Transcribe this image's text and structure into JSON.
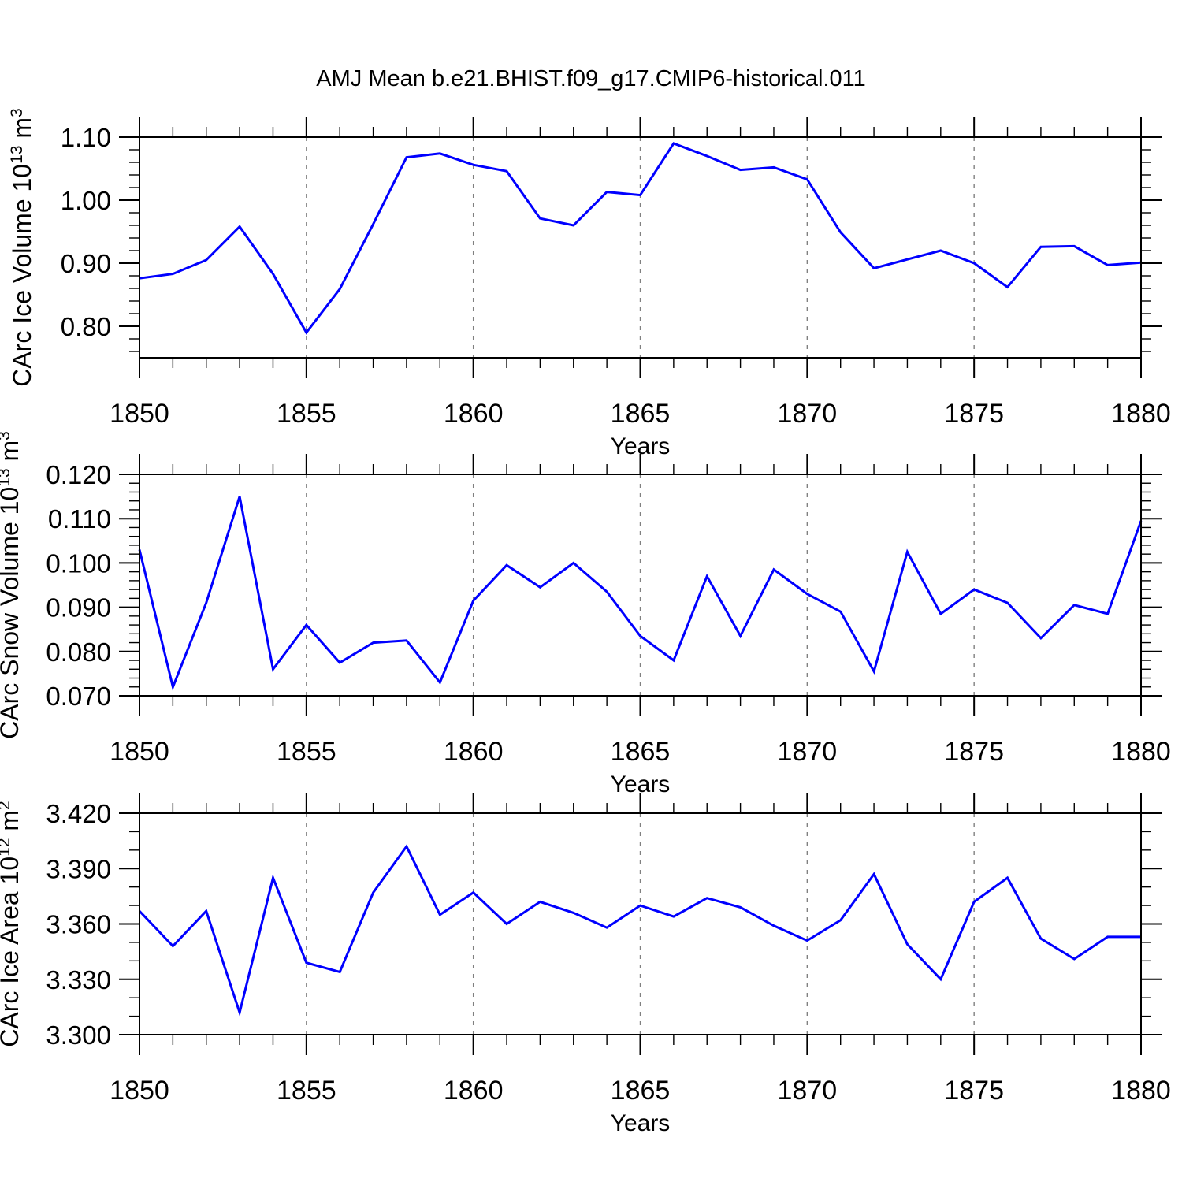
{
  "page": {
    "title": "AMJ Mean b.e21.BHIST.f09_g17.CMIP6-historical.011"
  },
  "colors": {
    "line": "#0000ff",
    "frame": "#000000",
    "grid": "#808080",
    "text": "#000000"
  },
  "chart_data": [
    {
      "id": "carc-ice-volume-chart",
      "type": "line",
      "title": "",
      "xlabel": "Years",
      "ylabel_plain": "CArc Ice Volume 10^13 m^3",
      "ylabel_parts": [
        {
          "text": "CArc Ice Volume 10",
          "sup": false
        },
        {
          "text": "13",
          "sup": true
        },
        {
          "text": " m",
          "sup": false
        },
        {
          "text": "3",
          "sup": true
        }
      ],
      "x": [
        1850,
        1851,
        1852,
        1853,
        1854,
        1855,
        1856,
        1857,
        1858,
        1859,
        1860,
        1861,
        1862,
        1863,
        1864,
        1865,
        1866,
        1867,
        1868,
        1869,
        1870,
        1871,
        1872,
        1873,
        1874,
        1875,
        1876,
        1877,
        1878,
        1879,
        1880
      ],
      "values": [
        0.876,
        0.883,
        0.905,
        0.958,
        0.883,
        0.79,
        0.859,
        0.962,
        1.068,
        1.074,
        1.056,
        1.046,
        0.971,
        0.96,
        1.013,
        1.008,
        1.09,
        1.07,
        1.048,
        1.052,
        1.033,
        0.949,
        0.892,
        0.906,
        0.92,
        0.9,
        0.862,
        0.926,
        0.927,
        0.897,
        0.901
      ],
      "xlim": [
        1850,
        1880
      ],
      "ylim": [
        0.75,
        1.1
      ],
      "xtick_values": [
        1850,
        1855,
        1860,
        1865,
        1870,
        1875,
        1880
      ],
      "xtick_labels": [
        "1850",
        "1855",
        "1860",
        "1865",
        "1870",
        "1875",
        "1880"
      ],
      "xtick_minor_step": 1,
      "ytick_values": [
        0.8,
        0.9,
        1.0,
        1.1
      ],
      "ytick_labels": [
        "0.80",
        "0.90",
        "1.00",
        "1.10"
      ],
      "ytick_minor_step": 0.02,
      "grid_x": [
        1855,
        1860,
        1865,
        1870,
        1875
      ],
      "grid_dashed": true
    },
    {
      "id": "carc-snow-volume-chart",
      "type": "line",
      "title": "",
      "xlabel": "Years",
      "ylabel_plain": "CArc Snow Volume 10^13 m^3",
      "ylabel_parts": [
        {
          "text": "CArc Snow Volume 10",
          "sup": false
        },
        {
          "text": "13",
          "sup": true
        },
        {
          "text": " m",
          "sup": false
        },
        {
          "text": "3",
          "sup": true
        }
      ],
      "x": [
        1850,
        1851,
        1852,
        1853,
        1854,
        1855,
        1856,
        1857,
        1858,
        1859,
        1860,
        1861,
        1862,
        1863,
        1864,
        1865,
        1866,
        1867,
        1868,
        1869,
        1870,
        1871,
        1872,
        1873,
        1874,
        1875,
        1876,
        1877,
        1878,
        1879,
        1880
      ],
      "values": [
        0.103,
        0.072,
        0.091,
        0.115,
        0.076,
        0.086,
        0.0775,
        0.082,
        0.0825,
        0.073,
        0.0915,
        0.0995,
        0.0945,
        0.1,
        0.0935,
        0.0835,
        0.078,
        0.097,
        0.0835,
        0.0985,
        0.093,
        0.089,
        0.0755,
        0.1025,
        0.0885,
        0.094,
        0.091,
        0.083,
        0.0905,
        0.0885,
        0.1095
      ],
      "xlim": [
        1850,
        1880
      ],
      "ylim": [
        0.07,
        0.12
      ],
      "xtick_values": [
        1850,
        1855,
        1860,
        1865,
        1870,
        1875,
        1880
      ],
      "xtick_labels": [
        "1850",
        "1855",
        "1860",
        "1865",
        "1870",
        "1875",
        "1880"
      ],
      "xtick_minor_step": 1,
      "ytick_values": [
        0.07,
        0.08,
        0.09,
        0.1,
        0.11,
        0.12
      ],
      "ytick_labels": [
        "0.070",
        "0.080",
        "0.090",
        "0.100",
        "0.110",
        "0.120"
      ],
      "ytick_minor_step": 0.002,
      "grid_x": [
        1855,
        1860,
        1865,
        1870,
        1875
      ],
      "grid_dashed": true
    },
    {
      "id": "carc-ice-area-chart",
      "type": "line",
      "title": "",
      "xlabel": "Years",
      "ylabel_plain": "CArc Ice Area 10^12 m^2",
      "ylabel_parts": [
        {
          "text": "CArc Ice Area 10",
          "sup": false
        },
        {
          "text": "12",
          "sup": true
        },
        {
          "text": " m",
          "sup": false
        },
        {
          "text": "2",
          "sup": true
        }
      ],
      "x": [
        1850,
        1851,
        1852,
        1853,
        1854,
        1855,
        1856,
        1857,
        1858,
        1859,
        1860,
        1861,
        1862,
        1863,
        1864,
        1865,
        1866,
        1867,
        1868,
        1869,
        1870,
        1871,
        1872,
        1873,
        1874,
        1875,
        1876,
        1877,
        1878,
        1879,
        1880
      ],
      "values": [
        3.367,
        3.348,
        3.367,
        3.312,
        3.385,
        3.339,
        3.334,
        3.377,
        3.402,
        3.365,
        3.377,
        3.36,
        3.372,
        3.366,
        3.358,
        3.37,
        3.364,
        3.374,
        3.369,
        3.359,
        3.351,
        3.362,
        3.387,
        3.349,
        3.33,
        3.372,
        3.385,
        3.352,
        3.341,
        3.353,
        3.353
      ],
      "xlim": [
        1850,
        1880
      ],
      "ylim": [
        3.3,
        3.42
      ],
      "xtick_values": [
        1850,
        1855,
        1860,
        1865,
        1870,
        1875,
        1880
      ],
      "xtick_labels": [
        "1850",
        "1855",
        "1860",
        "1865",
        "1870",
        "1875",
        "1880"
      ],
      "xtick_minor_step": 1,
      "ytick_values": [
        3.3,
        3.33,
        3.36,
        3.39,
        3.42
      ],
      "ytick_labels": [
        "3.300",
        "3.330",
        "3.360",
        "3.390",
        "3.420"
      ],
      "ytick_minor_step": 0.01,
      "grid_x": [
        1855,
        1860,
        1865,
        1870,
        1875
      ],
      "grid_dashed": true
    }
  ]
}
